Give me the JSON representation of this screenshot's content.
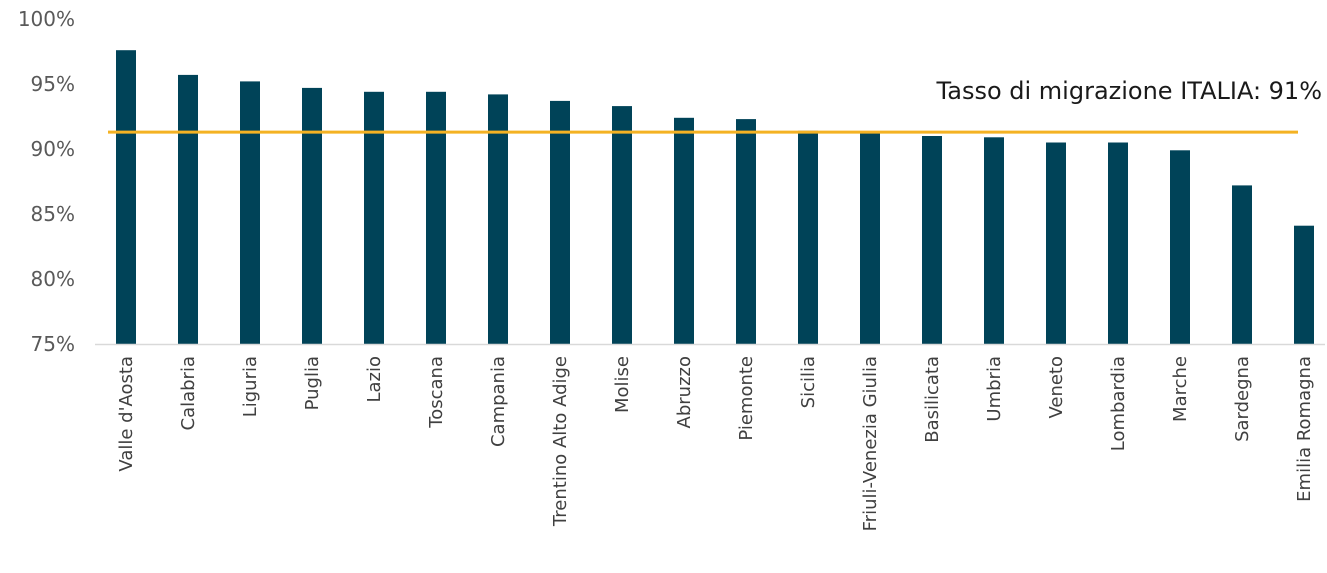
{
  "chart_data": {
    "type": "bar",
    "categories": [
      "Valle d'Aosta",
      "Calabria",
      "Liguria",
      "Puglia",
      "Lazio",
      "Toscana",
      "Campania",
      "Trentino Alto Adige",
      "Molise",
      "Abruzzo",
      "Piemonte",
      "Sicilia",
      "Friuli-Venezia Giulia",
      "Basilicata",
      "Umbria",
      "Veneto",
      "Lombardia",
      "Marche",
      "Sardegna",
      "Emilia Romagna"
    ],
    "values": [
      97.6,
      95.7,
      95.2,
      94.7,
      94.4,
      94.4,
      94.2,
      93.7,
      93.3,
      92.4,
      92.3,
      91.4,
      91.3,
      91.0,
      90.9,
      90.5,
      90.5,
      89.9,
      87.2,
      84.1
    ],
    "ylim": [
      75,
      100
    ],
    "yticks": [
      75,
      80,
      85,
      90,
      95,
      100
    ],
    "ytick_labels": [
      "75%",
      "80%",
      "85%",
      "90%",
      "95%",
      "100%"
    ],
    "reference_line": {
      "value": 91.3,
      "label": "Tasso di migrazione ITALIA: 91%"
    },
    "bar_color": "#004358",
    "line_color": "#F4B223",
    "title": "",
    "xlabel": "",
    "ylabel": "",
    "grid": false,
    "legend": "none"
  }
}
